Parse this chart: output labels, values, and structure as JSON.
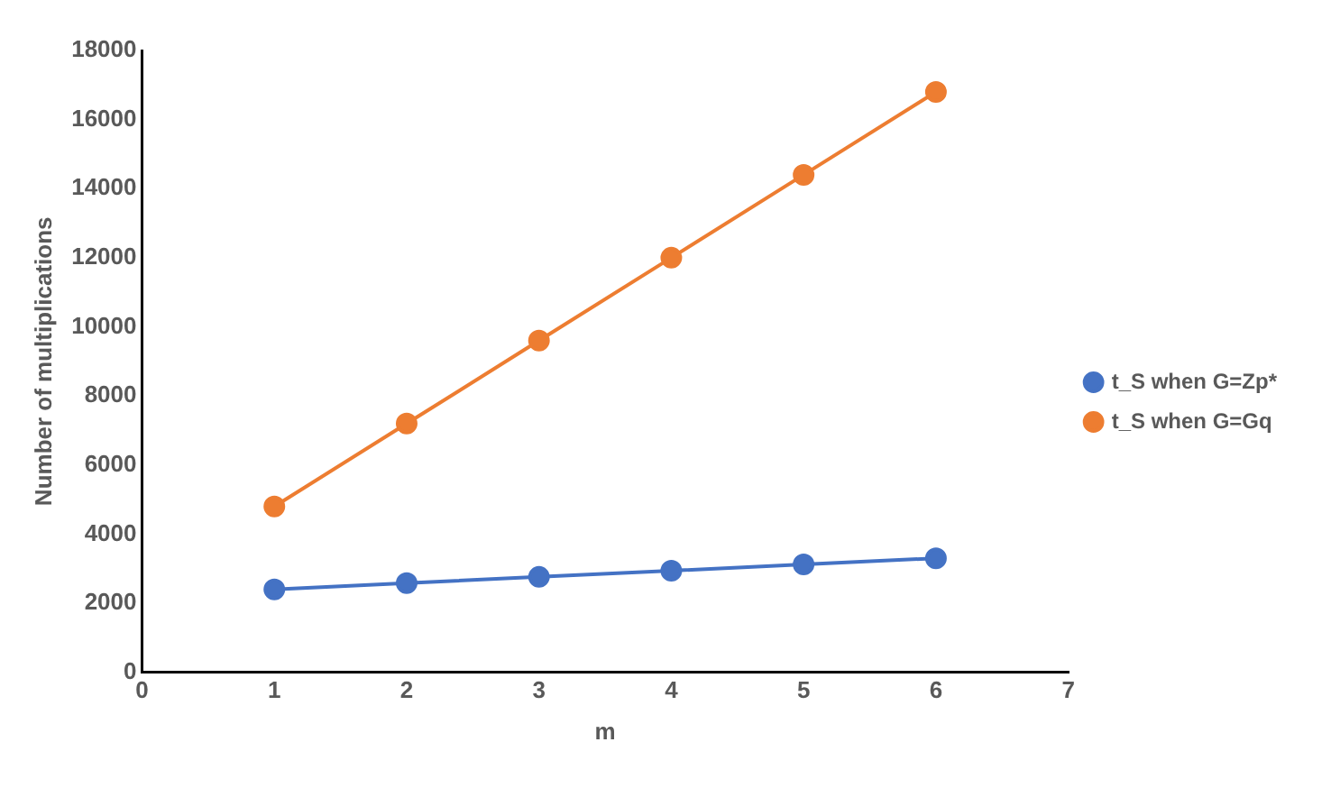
{
  "chart_data": {
    "type": "line",
    "xlabel": "m",
    "ylabel": "Number of multiplications",
    "x": [
      1,
      2,
      3,
      4,
      5,
      6
    ],
    "series": [
      {
        "name": "t_S when G=Zp*",
        "color": "#4472c4",
        "values": [
          2400,
          2580,
          2760,
          2940,
          3120,
          3300
        ]
      },
      {
        "name": "t_S when G=Gq",
        "color": "#ed7d31",
        "values": [
          4800,
          7200,
          9600,
          12000,
          14400,
          16800
        ]
      }
    ],
    "xlim": [
      0,
      7
    ],
    "xticks": [
      0,
      1,
      2,
      3,
      4,
      5,
      6,
      7
    ],
    "ylim": [
      0,
      18000
    ],
    "yticks": [
      0,
      2000,
      4000,
      6000,
      8000,
      10000,
      12000,
      14000,
      16000,
      18000
    ],
    "grid": false,
    "legend": "right",
    "marker": "circle",
    "line_style": "solid"
  }
}
